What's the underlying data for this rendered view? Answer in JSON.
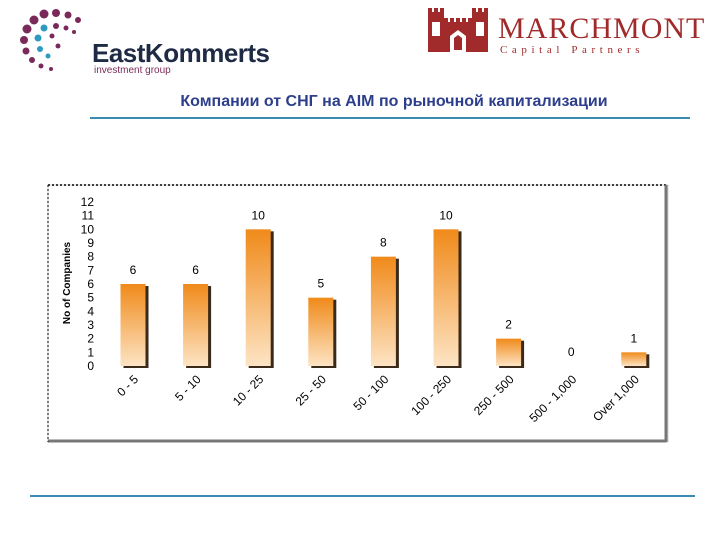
{
  "header": {
    "left_logo": {
      "name": "EastKommerts",
      "tagline": "investment group"
    },
    "right_logo": {
      "name": "MARCHMONT",
      "tagline": "Capital Partners"
    },
    "title": "Компании от СНГ на AIM по рыночной капитализации"
  },
  "colors": {
    "title": "#2c3e8c",
    "rule": "#3a8bb0",
    "bar_top": "#f08a1a",
    "bar_bottom": "#fde4c4",
    "marchmont": "#a12a2a",
    "eastkommerts": "#1f2a44"
  },
  "chart_data": {
    "type": "bar",
    "categories": [
      "0 - 5",
      "5 - 10",
      "10 - 25",
      "25 - 50",
      "50 - 100",
      "100 - 250",
      "250 - 500",
      "500 - 1,000",
      "Over 1,000"
    ],
    "values": [
      6,
      6,
      10,
      5,
      8,
      10,
      2,
      0,
      1
    ],
    "data_labels": [
      "6",
      "6",
      "10",
      "5",
      "8",
      "10",
      "2",
      "0",
      "1"
    ],
    "title": "",
    "xlabel": "",
    "ylabel": "No of Companies",
    "ylim": [
      0,
      12
    ],
    "yticks": [
      "0",
      "1",
      "2",
      "3",
      "4",
      "5",
      "6",
      "7",
      "8",
      "9",
      "10",
      "11",
      "12"
    ],
    "grid": false,
    "legend": "none"
  }
}
